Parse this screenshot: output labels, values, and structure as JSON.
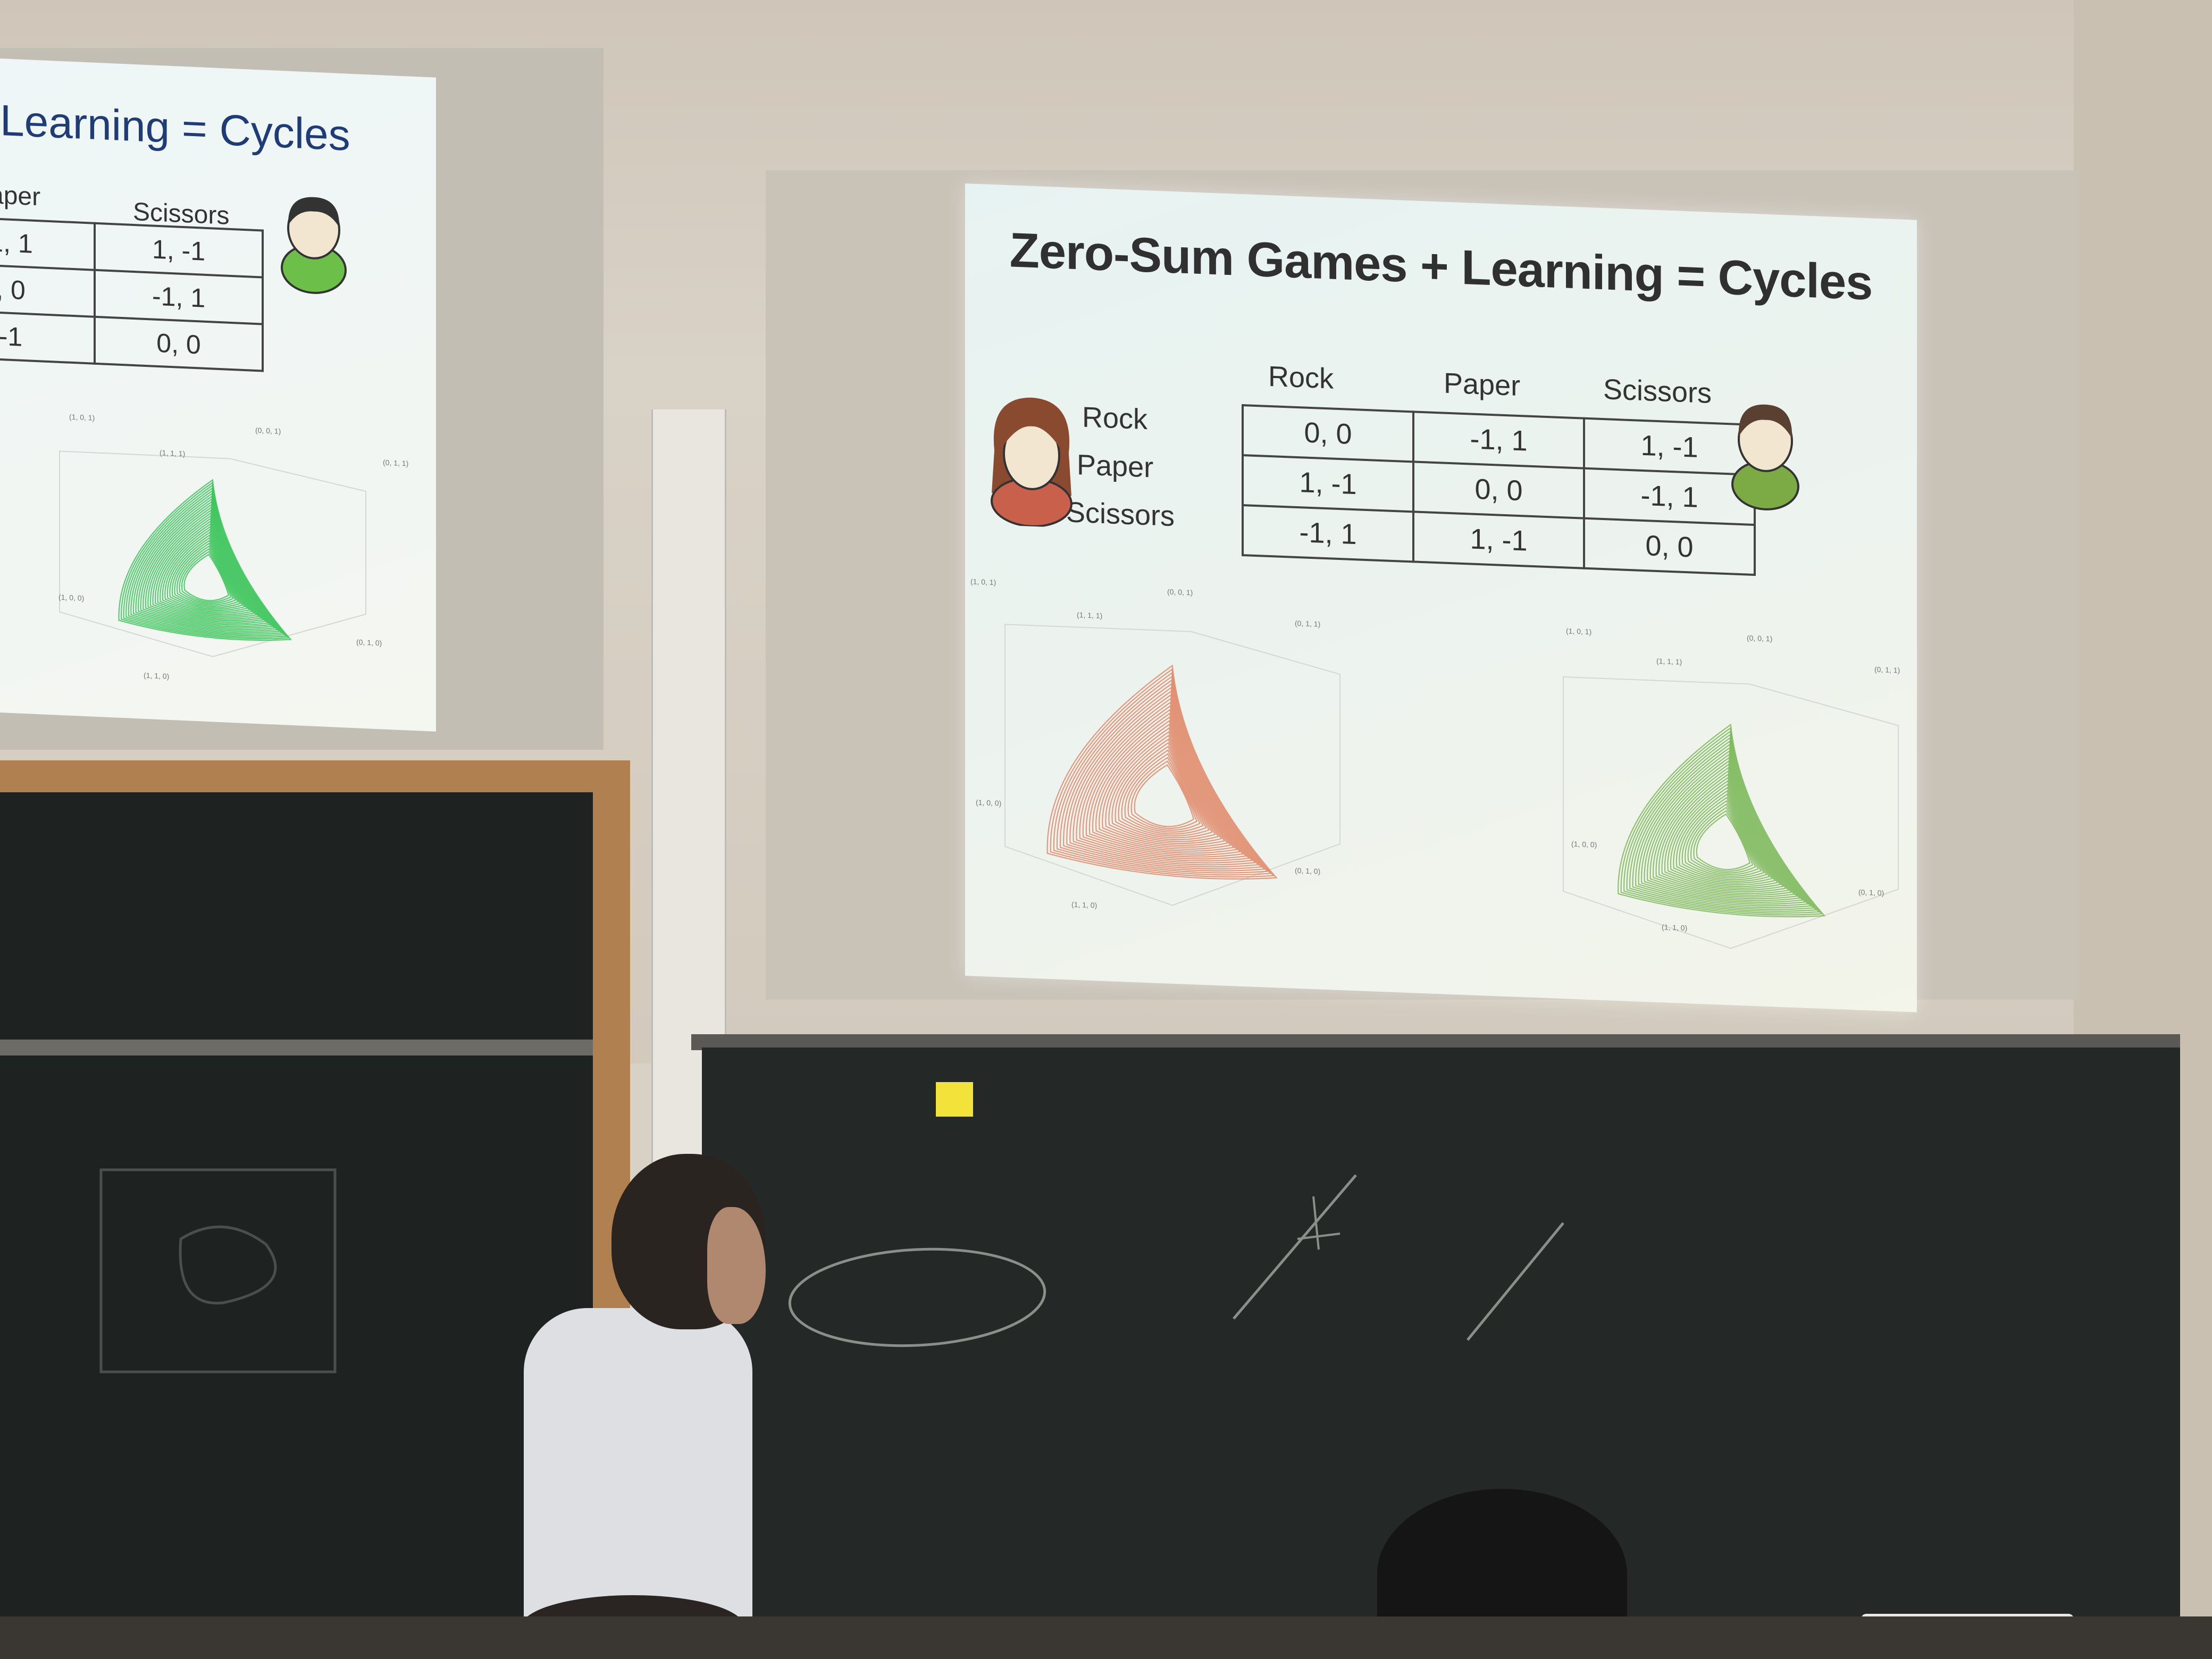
{
  "slide": {
    "title": "Zero-Sum Games + Learning = Cycles",
    "columns": [
      "Rock",
      "Paper",
      "Scissors"
    ],
    "rows": [
      "Rock",
      "Paper",
      "Scissors"
    ],
    "cells": [
      [
        "0, 0",
        "-1, 1",
        "1, -1"
      ],
      [
        "1, -1",
        "0, 0",
        "-1, 1"
      ],
      [
        "-1, 1",
        "1, -1",
        "0, 0"
      ]
    ],
    "left_plot": {
      "color": "#e08868",
      "corner_labels": [
        "(1, 0, 1)",
        "(0, 0, 1)",
        "(1, 1, 1)",
        "(0, 1, 1)",
        "(1, 0, 0)",
        "(0, 1, 0)",
        "(1, 1, 0)"
      ]
    },
    "right_plot": {
      "color": "#7cb85a",
      "corner_labels": [
        "(1, 0, 1)",
        "(0, 0, 1)",
        "(1, 1, 1)",
        "(0, 1, 1)",
        "(1, 0, 0)",
        "(0, 1, 0)",
        "(1, 1, 0)"
      ]
    },
    "female_avatar_color": "#c8604c",
    "male_avatar_color": "#7caa44"
  },
  "left_slide": {
    "title": "Learning = Cycles",
    "columns": [
      "aper",
      "Scissors"
    ],
    "cells": [
      [
        "1, 1",
        "1, -1"
      ],
      [
        ", 0",
        "-1, 1"
      ],
      [
        "-1",
        "0, 0"
      ]
    ],
    "plot_color": "#3cc45a",
    "corner_labels": [
      "(1, 0, 1)",
      "(0, 0, 1)",
      "(1, 1, 1)",
      "(0, 1, 1)",
      "(1, 0, 0)",
      "(0, 1, 0)",
      "(1, 1, 0)"
    ]
  }
}
